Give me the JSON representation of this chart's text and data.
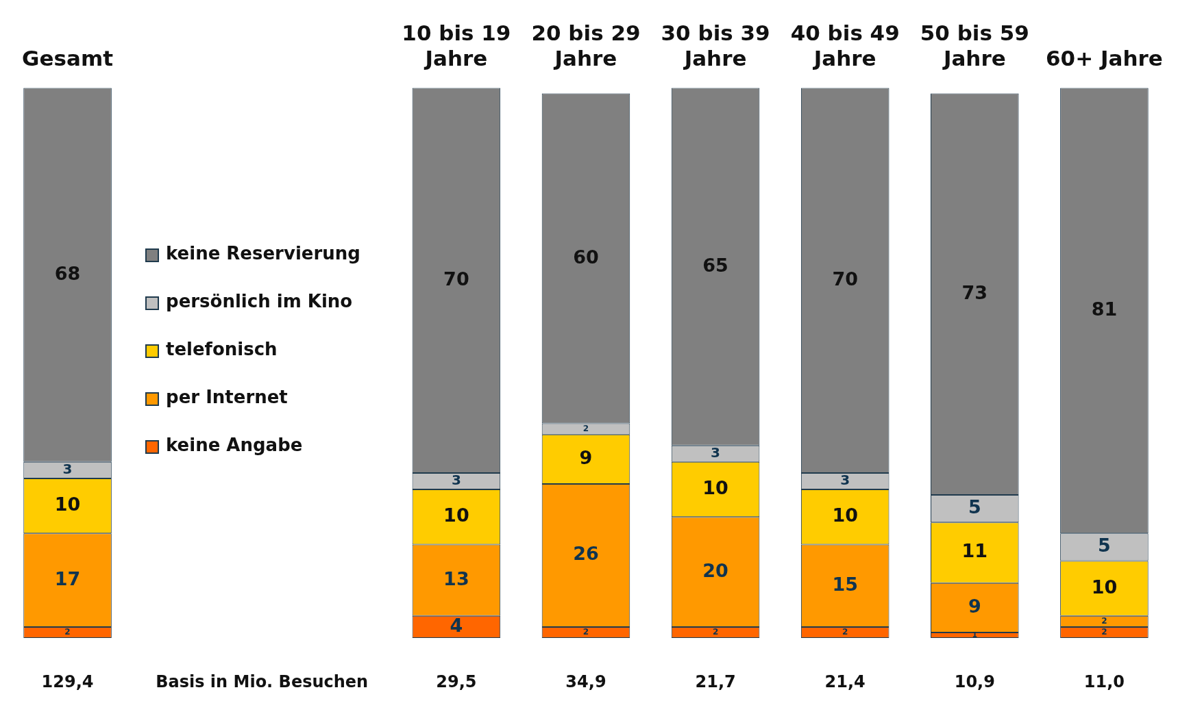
{
  "chart_data": {
    "type": "bar",
    "stacked": true,
    "categories": [
      "Gesamt",
      null,
      null,
      "10 bis 19 Jahre",
      "20 bis 29 Jahre",
      "30 bis 39 Jahre",
      "40 bis 49 Jahre",
      "50 bis 59 Jahre",
      "60+ Jahre"
    ],
    "series": [
      {
        "name": "keine Angabe",
        "color": "#ff6600",
        "values": [
          2,
          null,
          null,
          4,
          2,
          2,
          2,
          1,
          2
        ]
      },
      {
        "name": "per Internet",
        "color": "#ff9900",
        "values": [
          17,
          null,
          null,
          13,
          26,
          20,
          15,
          9,
          2
        ]
      },
      {
        "name": "telefonisch",
        "color": "#ffcc00",
        "values": [
          10,
          null,
          null,
          10,
          9,
          10,
          10,
          11,
          10
        ]
      },
      {
        "name": "persönlich im Kino",
        "color": "#c0c0c0",
        "values": [
          3,
          null,
          null,
          3,
          2,
          3,
          3,
          5,
          5
        ]
      },
      {
        "name": "keine Reservierung",
        "color": "#808080",
        "values": [
          68,
          null,
          null,
          70,
          60,
          65,
          70,
          73,
          81
        ]
      }
    ],
    "ylim": [
      0,
      100
    ],
    "tick_labels": "x",
    "grid": false,
    "legend": "left",
    "data_labels": true,
    "annotations": [
      "129,4",
      "Basis in Mio. Besuchen",
      "29,5",
      "34,9",
      "21,7",
      "21,4",
      "10,9",
      "11,0"
    ]
  }
}
